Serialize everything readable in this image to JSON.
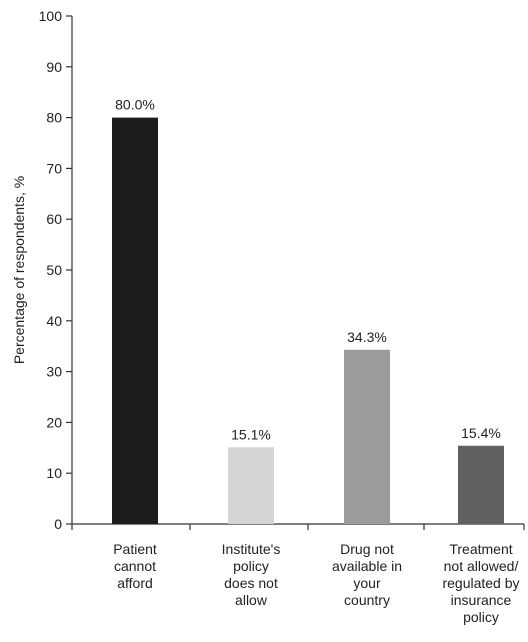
{
  "chart_data": {
    "type": "bar",
    "title": "",
    "xlabel": "",
    "ylabel": "Percentage of respondents, %",
    "ylim": [
      0,
      100
    ],
    "yticks": [
      0,
      10,
      20,
      30,
      40,
      50,
      60,
      70,
      80,
      90,
      100
    ],
    "grid": false,
    "categories": [
      "Patient cannot afford",
      "Institute's policy does not allow",
      "Drug not available in your country",
      "Treatment not allowed/ regulated by insurance policy"
    ],
    "category_lines": [
      [
        "Patient",
        "cannot",
        "afford"
      ],
      [
        "Institute's",
        "policy",
        "does not",
        "allow"
      ],
      [
        "Drug not",
        "available in",
        "your",
        "country"
      ],
      [
        "Treatment",
        "not allowed/",
        "regulated by",
        "insurance",
        "policy"
      ]
    ],
    "values": [
      80.0,
      15.1,
      34.3,
      15.4
    ],
    "value_labels": [
      "80.0%",
      "15.1%",
      "34.3%",
      "15.4%"
    ],
    "colors": [
      "#1c1c1c",
      "#d4d4d4",
      "#9b9b9b",
      "#606060"
    ]
  }
}
